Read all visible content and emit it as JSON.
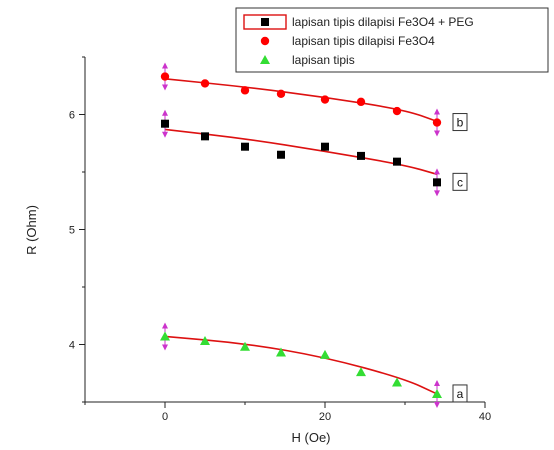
{
  "chart_data": {
    "type": "scatter",
    "title": "",
    "xlabel": "H (Oe)",
    "ylabel": "R (Ohm)",
    "xlim": [
      -10,
      40
    ],
    "ylim": [
      3.5,
      6.5
    ],
    "xticks": [
      "0",
      "20",
      "40"
    ],
    "yticks": [
      "4",
      "5",
      "6"
    ],
    "grid": false,
    "legend_position": "top-right",
    "series": [
      {
        "name": "lapisan tipis dilapisi Fe3O4 + PEG",
        "marker": "square",
        "color": "#000000",
        "curve_label": "c",
        "x": [
          0,
          5,
          10,
          14.5,
          20,
          24.5,
          29,
          34
        ],
        "y": [
          5.92,
          5.81,
          5.72,
          5.65,
          5.72,
          5.64,
          5.59,
          5.41
        ],
        "fit": [
          [
            0,
            5.87
          ],
          [
            10,
            5.79
          ],
          [
            20,
            5.68
          ],
          [
            30,
            5.56
          ],
          [
            34,
            5.48
          ]
        ]
      },
      {
        "name": "lapisan tipis dilapisi Fe3O4",
        "marker": "circle",
        "color": "#ff0000",
        "curve_label": "b",
        "x": [
          0,
          5,
          10,
          14.5,
          20,
          24.5,
          29,
          34
        ],
        "y": [
          6.33,
          6.27,
          6.21,
          6.18,
          6.13,
          6.11,
          6.03,
          5.93
        ],
        "fit": [
          [
            0,
            6.31
          ],
          [
            10,
            6.24
          ],
          [
            20,
            6.15
          ],
          [
            30,
            6.04
          ],
          [
            34,
            5.94
          ]
        ]
      },
      {
        "name": "lapisan tipis",
        "marker": "triangle",
        "color": "#33dd33",
        "curve_label": "a",
        "x": [
          0,
          5,
          10,
          14.5,
          20,
          24.5,
          29,
          34
        ],
        "y": [
          4.07,
          4.03,
          3.98,
          3.93,
          3.91,
          3.76,
          3.67,
          3.57
        ],
        "fit": [
          [
            0,
            4.07
          ],
          [
            10,
            4.01
          ],
          [
            20,
            3.89
          ],
          [
            30,
            3.7
          ],
          [
            34,
            3.57
          ]
        ]
      }
    ],
    "fit_color": "#dd1111",
    "error_bar_color": "#cc33cc"
  }
}
